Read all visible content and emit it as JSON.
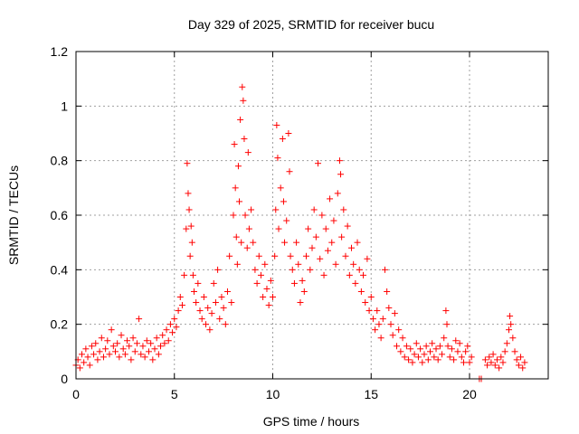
{
  "chart_data": {
    "type": "scatter",
    "title": "Day 329 of 2025, SRMTID for receiver bucu",
    "xlabel": "GPS time / hours",
    "ylabel": "SRMTID / TECUs",
    "xlim": [
      0,
      24
    ],
    "ylim": [
      0,
      1.2
    ],
    "xticks": [
      0,
      5,
      10,
      15,
      20
    ],
    "xtick_labels": [
      "0",
      "5",
      "10",
      "15",
      "20"
    ],
    "yticks": [
      0,
      0.2,
      0.4,
      0.6,
      0.8,
      1.0,
      1.2
    ],
    "ytick_labels": [
      "0",
      "0.2",
      "0.4",
      "0.6",
      "0.8",
      "1",
      "1.2"
    ],
    "grid": true,
    "marker": "+",
    "color": "#ff0000",
    "series": [
      {
        "name": "SRMTID",
        "points": [
          [
            0.0,
            0.05
          ],
          [
            0.1,
            0.07
          ],
          [
            0.2,
            0.04
          ],
          [
            0.3,
            0.09
          ],
          [
            0.4,
            0.06
          ],
          [
            0.5,
            0.11
          ],
          [
            0.6,
            0.08
          ],
          [
            0.7,
            0.05
          ],
          [
            0.8,
            0.12
          ],
          [
            0.9,
            0.09
          ],
          [
            1.0,
            0.13
          ],
          [
            1.1,
            0.07
          ],
          [
            1.2,
            0.1
          ],
          [
            1.3,
            0.15
          ],
          [
            1.4,
            0.08
          ],
          [
            1.5,
            0.11
          ],
          [
            1.6,
            0.14
          ],
          [
            1.7,
            0.09
          ],
          [
            1.8,
            0.18
          ],
          [
            1.9,
            0.12
          ],
          [
            2.0,
            0.1
          ],
          [
            2.1,
            0.13
          ],
          [
            2.2,
            0.08
          ],
          [
            2.3,
            0.16
          ],
          [
            2.4,
            0.11
          ],
          [
            2.5,
            0.09
          ],
          [
            2.6,
            0.14
          ],
          [
            2.7,
            0.12
          ],
          [
            2.8,
            0.07
          ],
          [
            2.9,
            0.15
          ],
          [
            3.0,
            0.1
          ],
          [
            3.1,
            0.13
          ],
          [
            3.2,
            0.22
          ],
          [
            3.3,
            0.09
          ],
          [
            3.4,
            0.12
          ],
          [
            3.5,
            0.08
          ],
          [
            3.6,
            0.14
          ],
          [
            3.7,
            0.1
          ],
          [
            3.8,
            0.13
          ],
          [
            3.9,
            0.07
          ],
          [
            4.0,
            0.11
          ],
          [
            4.1,
            0.15
          ],
          [
            4.2,
            0.09
          ],
          [
            4.3,
            0.12
          ],
          [
            4.4,
            0.16
          ],
          [
            4.5,
            0.13
          ],
          [
            4.6,
            0.18
          ],
          [
            4.7,
            0.14
          ],
          [
            4.8,
            0.2
          ],
          [
            4.9,
            0.17
          ],
          [
            5.0,
            0.22
          ],
          [
            5.1,
            0.19
          ],
          [
            5.2,
            0.25
          ],
          [
            5.3,
            0.3
          ],
          [
            5.4,
            0.27
          ],
          [
            5.5,
            0.38
          ],
          [
            5.6,
            0.55
          ],
          [
            5.65,
            0.79
          ],
          [
            5.7,
            0.68
          ],
          [
            5.75,
            0.62
          ],
          [
            5.8,
            0.45
          ],
          [
            5.85,
            0.56
          ],
          [
            5.9,
            0.5
          ],
          [
            5.95,
            0.38
          ],
          [
            6.0,
            0.32
          ],
          [
            6.1,
            0.28
          ],
          [
            6.2,
            0.35
          ],
          [
            6.3,
            0.25
          ],
          [
            6.4,
            0.22
          ],
          [
            6.5,
            0.3
          ],
          [
            6.6,
            0.2
          ],
          [
            6.7,
            0.26
          ],
          [
            6.8,
            0.18
          ],
          [
            6.9,
            0.24
          ],
          [
            7.0,
            0.35
          ],
          [
            7.1,
            0.28
          ],
          [
            7.2,
            0.4
          ],
          [
            7.3,
            0.22
          ],
          [
            7.4,
            0.3
          ],
          [
            7.5,
            0.26
          ],
          [
            7.6,
            0.2
          ],
          [
            7.7,
            0.32
          ],
          [
            7.8,
            0.45
          ],
          [
            7.9,
            0.28
          ],
          [
            8.0,
            0.6
          ],
          [
            8.05,
            0.86
          ],
          [
            8.1,
            0.7
          ],
          [
            8.15,
            0.52
          ],
          [
            8.2,
            0.42
          ],
          [
            8.25,
            0.78
          ],
          [
            8.3,
            0.65
          ],
          [
            8.35,
            0.95
          ],
          [
            8.4,
            0.5
          ],
          [
            8.45,
            1.07
          ],
          [
            8.5,
            1.02
          ],
          [
            8.55,
            0.88
          ],
          [
            8.6,
            0.6
          ],
          [
            8.7,
            0.48
          ],
          [
            8.75,
            0.83
          ],
          [
            8.8,
            0.55
          ],
          [
            8.9,
            0.62
          ],
          [
            9.0,
            0.5
          ],
          [
            9.1,
            0.4
          ],
          [
            9.2,
            0.35
          ],
          [
            9.3,
            0.45
          ],
          [
            9.4,
            0.38
          ],
          [
            9.5,
            0.3
          ],
          [
            9.6,
            0.42
          ],
          [
            9.7,
            0.33
          ],
          [
            9.8,
            0.27
          ],
          [
            9.9,
            0.36
          ],
          [
            10.0,
            0.3
          ],
          [
            10.1,
            0.45
          ],
          [
            10.15,
            0.62
          ],
          [
            10.2,
            0.93
          ],
          [
            10.25,
            0.81
          ],
          [
            10.3,
            0.55
          ],
          [
            10.4,
            0.7
          ],
          [
            10.5,
            0.88
          ],
          [
            10.55,
            0.65
          ],
          [
            10.6,
            0.5
          ],
          [
            10.7,
            0.58
          ],
          [
            10.8,
            0.9
          ],
          [
            10.85,
            0.76
          ],
          [
            10.9,
            0.45
          ],
          [
            11.0,
            0.4
          ],
          [
            11.1,
            0.35
          ],
          [
            11.2,
            0.5
          ],
          [
            11.3,
            0.42
          ],
          [
            11.4,
            0.28
          ],
          [
            11.5,
            0.36
          ],
          [
            11.6,
            0.32
          ],
          [
            11.7,
            0.45
          ],
          [
            11.8,
            0.55
          ],
          [
            11.9,
            0.4
          ],
          [
            12.0,
            0.48
          ],
          [
            12.1,
            0.62
          ],
          [
            12.2,
            0.52
          ],
          [
            12.3,
            0.79
          ],
          [
            12.4,
            0.44
          ],
          [
            12.5,
            0.6
          ],
          [
            12.6,
            0.38
          ],
          [
            12.7,
            0.55
          ],
          [
            12.8,
            0.47
          ],
          [
            12.9,
            0.66
          ],
          [
            13.0,
            0.5
          ],
          [
            13.1,
            0.58
          ],
          [
            13.2,
            0.42
          ],
          [
            13.3,
            0.68
          ],
          [
            13.4,
            0.8
          ],
          [
            13.45,
            0.75
          ],
          [
            13.5,
            0.52
          ],
          [
            13.6,
            0.62
          ],
          [
            13.7,
            0.45
          ],
          [
            13.8,
            0.56
          ],
          [
            13.9,
            0.38
          ],
          [
            14.0,
            0.48
          ],
          [
            14.1,
            0.42
          ],
          [
            14.2,
            0.35
          ],
          [
            14.3,
            0.5
          ],
          [
            14.4,
            0.4
          ],
          [
            14.5,
            0.32
          ],
          [
            14.6,
            0.38
          ],
          [
            14.7,
            0.28
          ],
          [
            14.8,
            0.44
          ],
          [
            14.9,
            0.25
          ],
          [
            15.0,
            0.3
          ],
          [
            15.1,
            0.22
          ],
          [
            15.2,
            0.18
          ],
          [
            15.3,
            0.25
          ],
          [
            15.4,
            0.2
          ],
          [
            15.5,
            0.15
          ],
          [
            15.6,
            0.22
          ],
          [
            15.7,
            0.4
          ],
          [
            15.8,
            0.32
          ],
          [
            15.9,
            0.26
          ],
          [
            16.0,
            0.2
          ],
          [
            16.1,
            0.16
          ],
          [
            16.2,
            0.24
          ],
          [
            16.3,
            0.12
          ],
          [
            16.4,
            0.18
          ],
          [
            16.5,
            0.1
          ],
          [
            16.6,
            0.15
          ],
          [
            16.7,
            0.08
          ],
          [
            16.8,
            0.12
          ],
          [
            16.9,
            0.07
          ],
          [
            17.0,
            0.11
          ],
          [
            17.1,
            0.06
          ],
          [
            17.2,
            0.09
          ],
          [
            17.3,
            0.13
          ],
          [
            17.4,
            0.08
          ],
          [
            17.5,
            0.11
          ],
          [
            17.6,
            0.06
          ],
          [
            17.7,
            0.09
          ],
          [
            17.8,
            0.12
          ],
          [
            17.9,
            0.07
          ],
          [
            18.0,
            0.1
          ],
          [
            18.1,
            0.13
          ],
          [
            18.2,
            0.08
          ],
          [
            18.3,
            0.11
          ],
          [
            18.4,
            0.07
          ],
          [
            18.5,
            0.12
          ],
          [
            18.6,
            0.09
          ],
          [
            18.7,
            0.15
          ],
          [
            18.8,
            0.25
          ],
          [
            18.85,
            0.2
          ],
          [
            18.9,
            0.12
          ],
          [
            19.0,
            0.08
          ],
          [
            19.1,
            0.11
          ],
          [
            19.2,
            0.07
          ],
          [
            19.3,
            0.14
          ],
          [
            19.4,
            0.1
          ],
          [
            19.5,
            0.13
          ],
          [
            19.6,
            0.08
          ],
          [
            19.7,
            0.06
          ],
          [
            19.8,
            0.1
          ],
          [
            19.9,
            0.12
          ],
          [
            20.0,
            0.06
          ],
          [
            20.1,
            0.08
          ],
          [
            20.5,
            0.0
          ],
          [
            20.6,
            0.0
          ],
          [
            20.8,
            0.07
          ],
          [
            20.9,
            0.05
          ],
          [
            21.0,
            0.08
          ],
          [
            21.1,
            0.06
          ],
          [
            21.2,
            0.09
          ],
          [
            21.3,
            0.05
          ],
          [
            21.4,
            0.07
          ],
          [
            21.5,
            0.04
          ],
          [
            21.6,
            0.08
          ],
          [
            21.7,
            0.06
          ],
          [
            21.8,
            0.1
          ],
          [
            21.9,
            0.13
          ],
          [
            22.0,
            0.18
          ],
          [
            22.05,
            0.23
          ],
          [
            22.1,
            0.2
          ],
          [
            22.2,
            0.15
          ],
          [
            22.3,
            0.1
          ],
          [
            22.4,
            0.07
          ],
          [
            22.5,
            0.05
          ],
          [
            22.6,
            0.08
          ],
          [
            22.7,
            0.04
          ],
          [
            22.8,
            0.06
          ]
        ]
      }
    ]
  }
}
